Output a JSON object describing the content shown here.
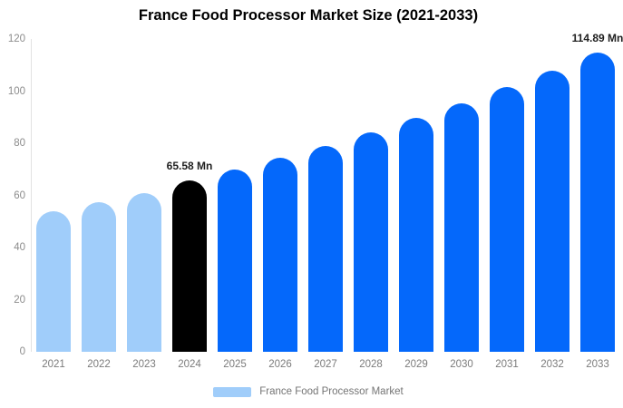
{
  "title": "France Food Processor Market Size (2021-2033)",
  "legend": {
    "label": "France Food Processor Market"
  },
  "colors": {
    "historical_bar": "#a0cdfa",
    "current_bar": "#000000",
    "forecast_bar": "#0468fb",
    "axis_line": "#e2e2e2",
    "tick_text": "#8c8c8c",
    "value_label_text": "#1f1f1f",
    "legend_text": "#757575"
  },
  "chart_data": {
    "type": "bar",
    "title": "France Food Processor Market Size (2021-2033)",
    "xlabel": "",
    "ylabel": "",
    "unit": "Mn",
    "ylim": [
      0,
      120
    ],
    "yticks": [
      0,
      20,
      40,
      60,
      80,
      100,
      120
    ],
    "grid": false,
    "legend_position": "bottom",
    "legend_entries": [
      "France Food Processor Market"
    ],
    "categories": [
      "2021",
      "2022",
      "2023",
      "2024",
      "2025",
      "2026",
      "2027",
      "2028",
      "2029",
      "2030",
      "2031",
      "2032",
      "2033"
    ],
    "bars": [
      {
        "year": "2021",
        "value": 54.0,
        "segment": "historical"
      },
      {
        "year": "2022",
        "value": 57.5,
        "segment": "historical"
      },
      {
        "year": "2023",
        "value": 61.0,
        "segment": "historical"
      },
      {
        "year": "2024",
        "value": 65.58,
        "segment": "current",
        "label": "65.58 Mn"
      },
      {
        "year": "2025",
        "value": 69.8,
        "segment": "forecast"
      },
      {
        "year": "2026",
        "value": 74.3,
        "segment": "forecast"
      },
      {
        "year": "2027",
        "value": 79.1,
        "segment": "forecast"
      },
      {
        "year": "2028",
        "value": 84.2,
        "segment": "forecast"
      },
      {
        "year": "2029",
        "value": 89.6,
        "segment": "forecast"
      },
      {
        "year": "2030",
        "value": 95.3,
        "segment": "forecast"
      },
      {
        "year": "2031",
        "value": 101.5,
        "segment": "forecast"
      },
      {
        "year": "2032",
        "value": 108.0,
        "segment": "forecast"
      },
      {
        "year": "2033",
        "value": 114.89,
        "segment": "forecast",
        "label": "114.89 Mn"
      }
    ]
  }
}
